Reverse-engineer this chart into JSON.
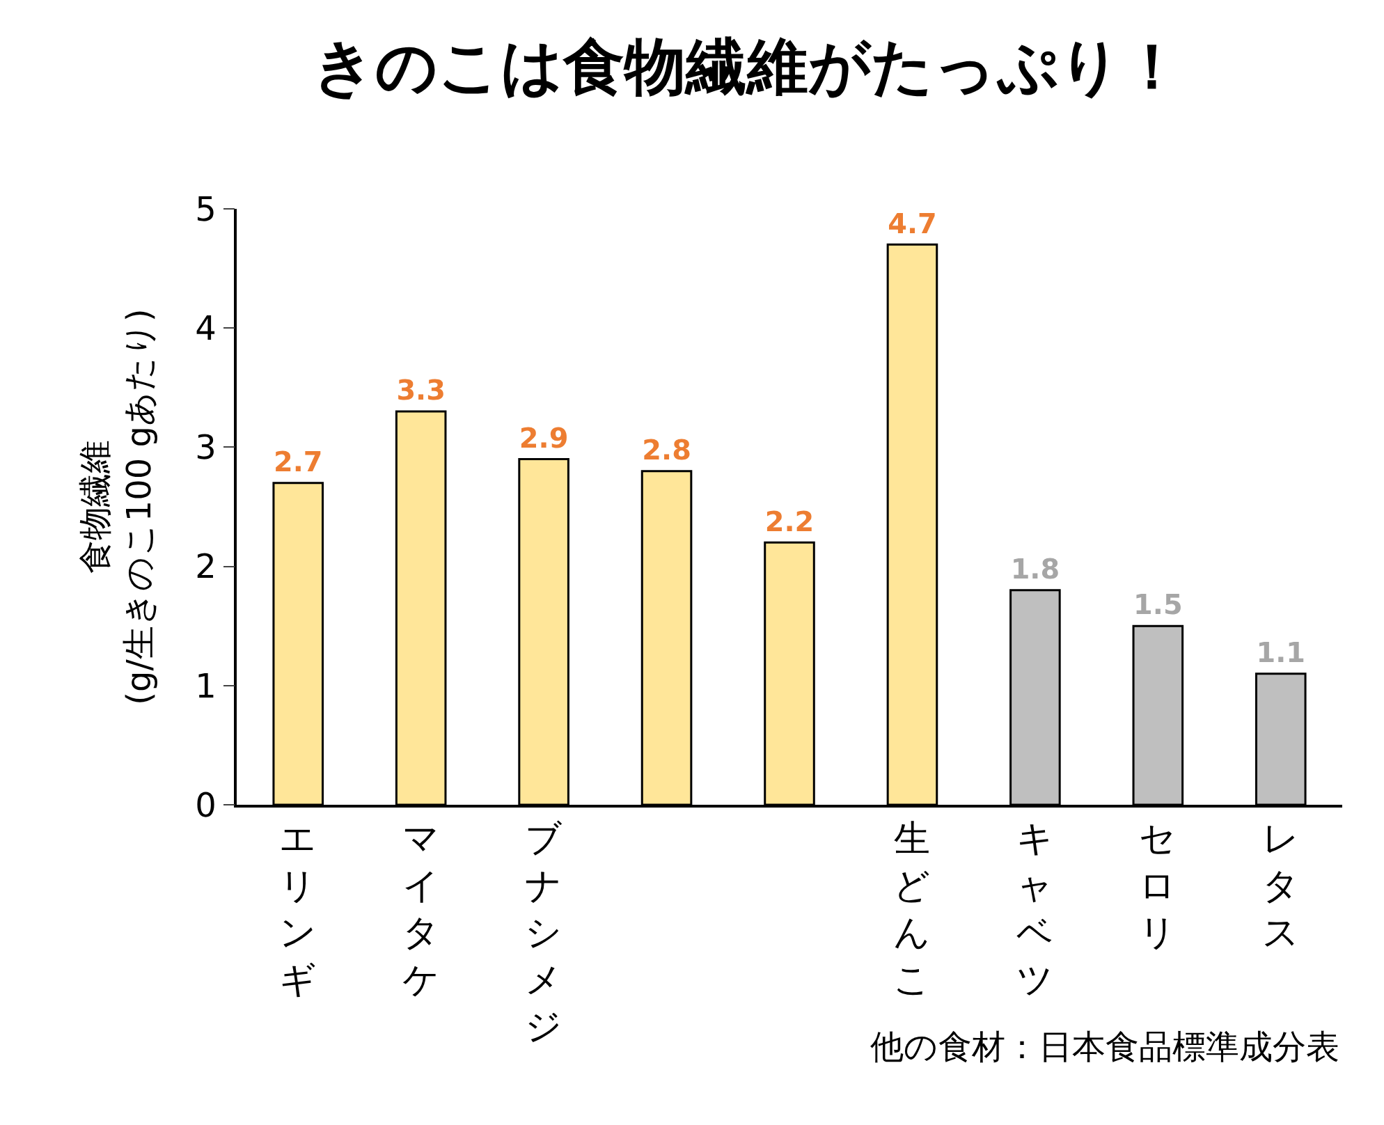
{
  "chart_data": {
    "type": "bar",
    "title": "きのこは食物繊維がたっぷり！",
    "ylabel": "食物繊維\n(g/生きのこ100 gあたり)",
    "categories": [
      "エリンギ",
      "マイタケ",
      "ブナシメジ",
      null,
      null,
      "生どんこ",
      "キャベツ",
      "セロリ",
      "レタス"
    ],
    "values": [
      2.7,
      3.3,
      2.9,
      2.8,
      2.2,
      4.7,
      1.8,
      1.5,
      1.1
    ],
    "colors": [
      "#ffe699",
      "#ffe699",
      "#ffe699",
      "#ffe699",
      "#ffe699",
      "#ffe699",
      "#bfbfbf",
      "#bfbfbf",
      "#bfbfbf"
    ],
    "ylim": [
      0,
      5
    ],
    "yticks": [
      0,
      1,
      2,
      3,
      4,
      5
    ],
    "data_labels": true,
    "annotations": [
      "他の食材：日本食品標準成分表"
    ]
  }
}
